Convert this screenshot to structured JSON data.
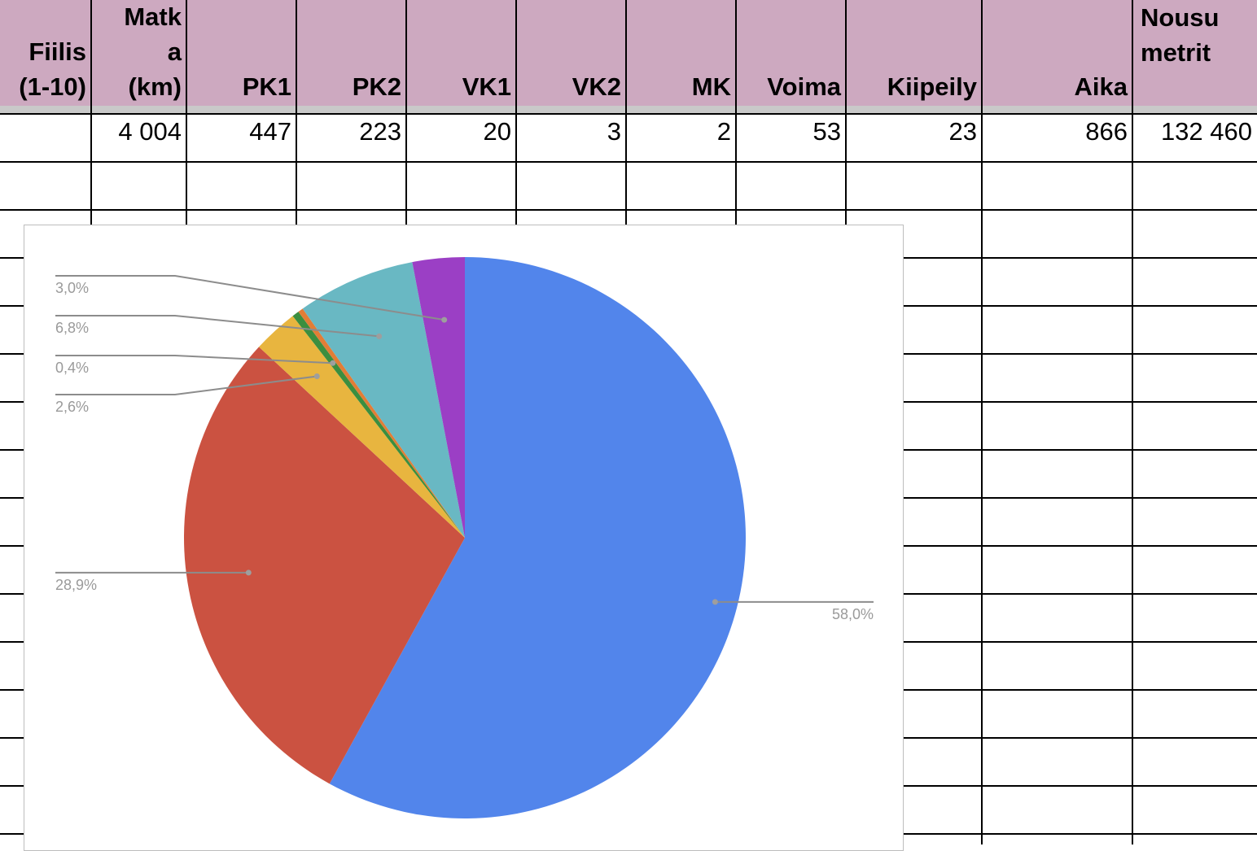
{
  "spreadsheet": {
    "columns": [
      {
        "key": "fiilis",
        "label": "Fiilis\n(1-10)",
        "align": "bottom"
      },
      {
        "key": "matka",
        "label": "Matk\na\n(km)",
        "align": "bottom"
      },
      {
        "key": "pk1",
        "label": "PK1",
        "align": "bottom"
      },
      {
        "key": "pk2",
        "label": "PK2",
        "align": "bottom"
      },
      {
        "key": "vk1",
        "label": "VK1",
        "align": "bottom"
      },
      {
        "key": "vk2",
        "label": "VK2",
        "align": "bottom"
      },
      {
        "key": "mk",
        "label": "MK",
        "align": "bottom"
      },
      {
        "key": "voima",
        "label": "Voima",
        "align": "bottom"
      },
      {
        "key": "kiipeily",
        "label": "Kiipeily",
        "align": "bottom"
      },
      {
        "key": "aika",
        "label": "Aika",
        "align": "bottom"
      },
      {
        "key": "nousu",
        "label": "Nousu\nmetrit",
        "align": "top"
      }
    ],
    "totals_row": [
      "",
      "4 004",
      "447",
      "223",
      "20",
      "3",
      "2",
      "53",
      "23",
      "866",
      "132 460"
    ],
    "header_color": "#cda9c0"
  },
  "chart_data": {
    "type": "pie",
    "title": "",
    "slices": [
      {
        "value": 58.0,
        "label": "58,0%",
        "color": "#5285eb"
      },
      {
        "value": 28.9,
        "label": "28,9%",
        "color": "#cb5241"
      },
      {
        "value": 2.6,
        "label": "2,6%",
        "color": "#e8b53f"
      },
      {
        "value": 0.4,
        "label": "0,4%",
        "color": "#3b8e3f"
      },
      {
        "value": 0.3,
        "label": "",
        "color": "#e27d36"
      },
      {
        "value": 6.8,
        "label": "6,8%",
        "color": "#69b8c3"
      },
      {
        "value": 3.0,
        "label": "3,0%",
        "color": "#9b3fc5"
      }
    ],
    "start_angle_deg": 0,
    "direction": "clockwise",
    "label_color": "#9a9a9a"
  }
}
